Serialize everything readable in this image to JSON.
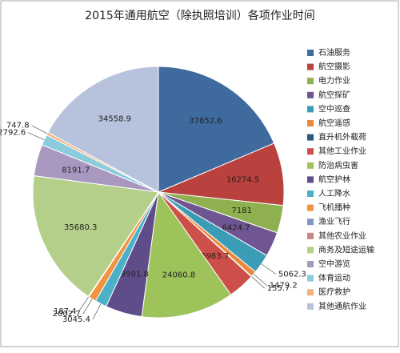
{
  "chart_data": {
    "type": "pie",
    "title": "2015年通用航空（除执照培训）各项作业时间",
    "categories": [
      "石油服务",
      "航空摄影",
      "电力作业",
      "航空探矿",
      "空中巡查",
      "航空遥感",
      "直升机外载荷",
      "其他工业作业",
      "防治病虫害",
      "航空护林",
      "人工降水",
      "飞机播种",
      "渔业飞行",
      "其他农业作业",
      "商务及短途运输",
      "空中游览",
      "体育运动",
      "医疗救护",
      "其他通航作业"
    ],
    "values": [
      37652.6,
      16274.5,
      7181,
      6424.7,
      5062.3,
      1479.2,
      155.7,
      6983.7,
      24060.8,
      9501.8,
      3045.4,
      2002.7,
      187.4,
      null,
      35680.3,
      8191.7,
      2792.6,
      747.8,
      34558.9
    ],
    "colors": [
      "#3e6a9e",
      "#b9413e",
      "#8fb04f",
      "#6f5592",
      "#3b9db5",
      "#e98a3a",
      "#2c5a7f",
      "#cd4f4a",
      "#9ec35a",
      "#5f4d8a",
      "#4bb0c8",
      "#f0943f",
      "#7f97c4",
      "#c98784",
      "#b3cf8a",
      "#a898c0",
      "#8ccbdb",
      "#f5b27c",
      "#b7c3dc"
    ],
    "legend": "right"
  }
}
